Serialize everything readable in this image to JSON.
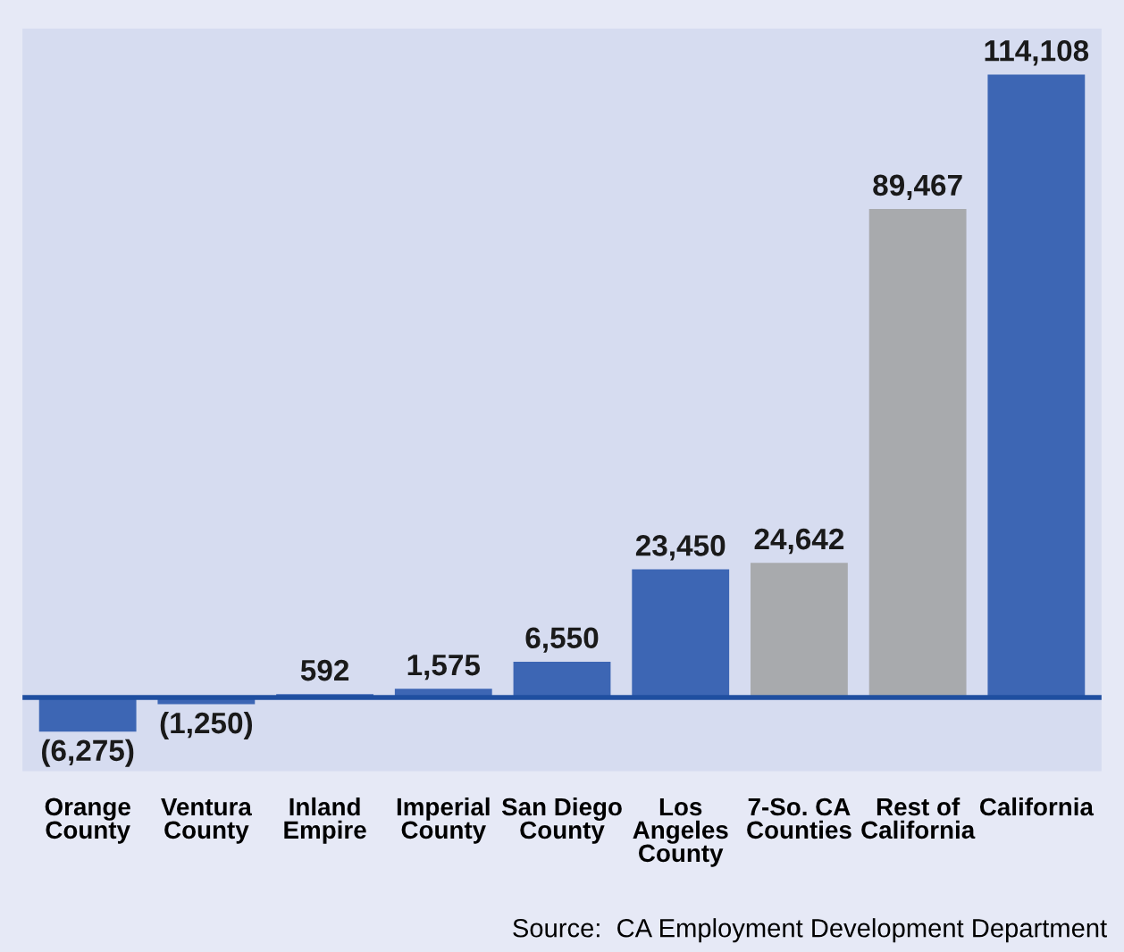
{
  "chart_data": {
    "type": "bar",
    "categories": [
      "Orange\nCounty",
      "Ventura\nCounty",
      "Inland\nEmpire",
      "Imperial\nCounty",
      "San Diego\nCounty",
      "Los\nAngeles\nCounty",
      "7-So. CA\nCounties",
      "Rest of\nCalifornia",
      "California"
    ],
    "values": [
      -6275,
      -1250,
      592,
      1575,
      6550,
      23450,
      24642,
      89467,
      114108
    ],
    "value_labels": [
      "(6,275)",
      "(1,250)",
      "592",
      "1,575",
      "6,550",
      "23,450",
      "24,642",
      "89,467",
      "114,108"
    ],
    "colors": [
      "#3d66b4",
      "#3d66b4",
      "#3d66b4",
      "#3d66b4",
      "#3d66b4",
      "#3d66b4",
      "#a8aaad",
      "#a8aaad",
      "#3d66b4"
    ],
    "annotations": [
      "Source:  CA Employment Development Department"
    ],
    "ref_lines": [
      {
        "axis": "y",
        "value": 0,
        "color": "#1f4fa0"
      }
    ],
    "grid": false,
    "legend": false
  }
}
